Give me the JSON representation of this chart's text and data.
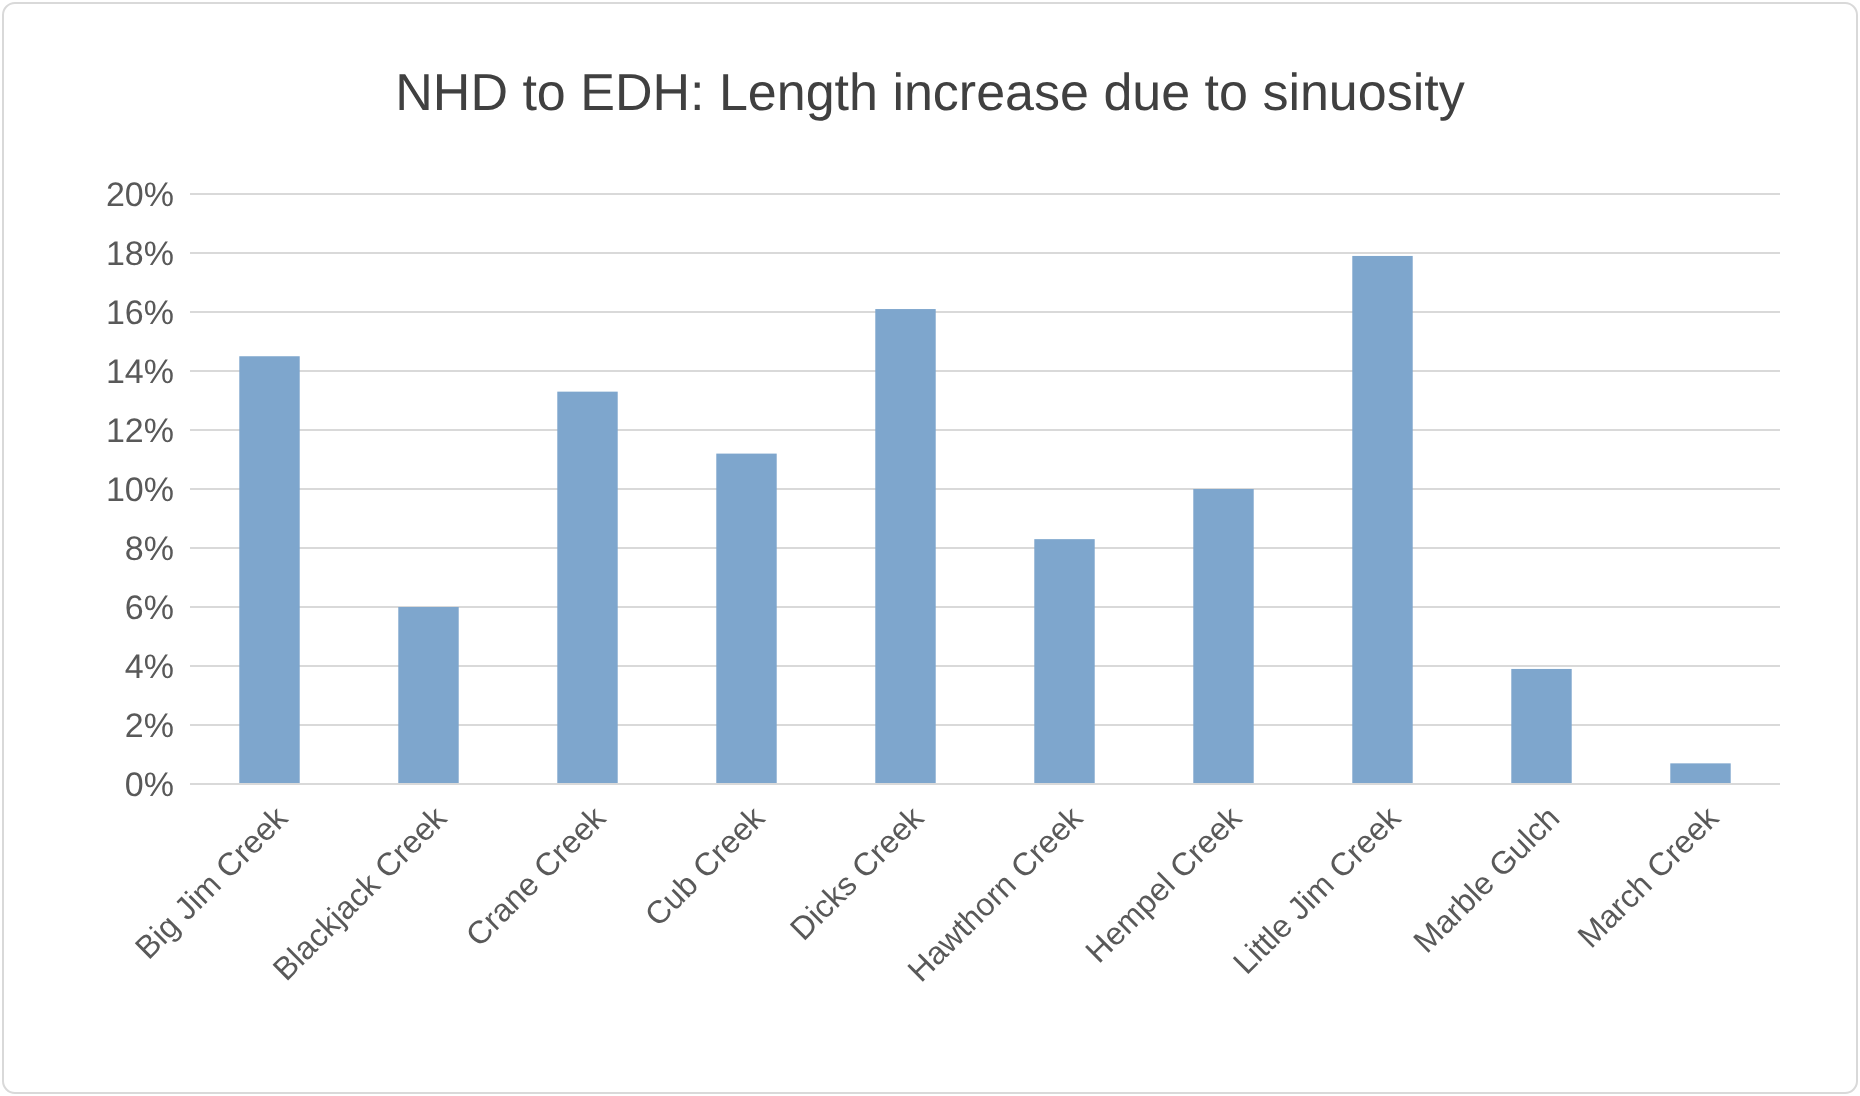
{
  "chart_data": {
    "type": "bar",
    "title": "NHD to EDH: Length increase due to sinuosity",
    "categories": [
      "Big Jim Creek",
      "Blackjack Creek",
      "Crane Creek",
      "Cub Creek",
      "Dicks Creek",
      "Hawthorn Creek",
      "Hempel Creek",
      "Little Jim Creek",
      "Marble Gulch",
      "March Creek"
    ],
    "values": [
      14.5,
      6.0,
      13.3,
      11.2,
      16.1,
      8.3,
      10.0,
      17.9,
      3.9,
      0.7
    ],
    "color": "#7ea6cd",
    "ylim": [
      0,
      20
    ],
    "yticks": [
      {
        "value": 0,
        "label": "0%"
      },
      {
        "value": 2,
        "label": "2%"
      },
      {
        "value": 4,
        "label": "4%"
      },
      {
        "value": 6,
        "label": "6%"
      },
      {
        "value": 8,
        "label": "8%"
      },
      {
        "value": 10,
        "label": "10%"
      },
      {
        "value": 12,
        "label": "12%"
      },
      {
        "value": 14,
        "label": "14%"
      },
      {
        "value": 16,
        "label": "16%"
      },
      {
        "value": 18,
        "label": "18%"
      },
      {
        "value": 20,
        "label": "20%"
      }
    ],
    "grid": "y"
  }
}
